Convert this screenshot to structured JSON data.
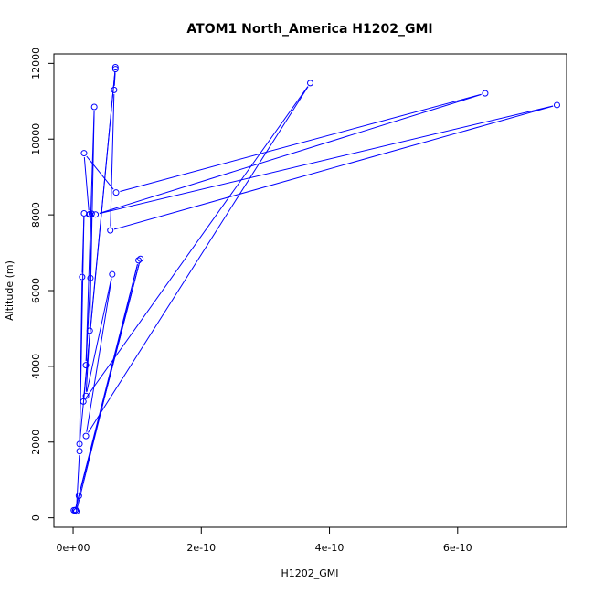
{
  "chart_data": {
    "type": "scatter",
    "title": "ATOM1 North_America H1202_GMI",
    "xlabel": "H1202_GMI",
    "ylabel": "Altitude (m)",
    "xlim": [
      -3e-11,
      7.7e-10
    ],
    "ylim": [
      -250,
      12250
    ],
    "x_ticks": [
      0,
      2e-10,
      4e-10,
      6e-10
    ],
    "x_tick_labels": [
      "0e+00",
      "2e-10",
      "4e-10",
      "6e-10"
    ],
    "y_ticks": [
      0,
      2000,
      4000,
      6000,
      8000,
      10000,
      12000
    ],
    "y_tick_labels": [
      "0",
      "2000",
      "4000",
      "6000",
      "8000",
      "10000",
      "12000"
    ],
    "grid": false,
    "series": [
      {
        "color": "#0000ff",
        "points": [
          {
            "x": 1e-12,
            "y": 200
          },
          {
            "x": 4e-12,
            "y": 210
          },
          {
            "x": 9e-12,
            "y": 580
          },
          {
            "x": 1.05e-10,
            "y": 6840
          },
          {
            "x": 3e-12,
            "y": 190
          },
          {
            "x": 1.02e-10,
            "y": 6800
          },
          {
            "x": 5e-12,
            "y": 170
          },
          {
            "x": 1e-11,
            "y": 1760
          },
          {
            "x": 1.7e-11,
            "y": 8040
          },
          {
            "x": 1.4e-11,
            "y": 6360
          },
          {
            "x": 1e-11,
            "y": 1950
          },
          {
            "x": 6.6e-11,
            "y": 11900
          },
          {
            "x": 1.6e-11,
            "y": 3070
          },
          {
            "x": 3.7e-10,
            "y": 11480
          },
          {
            "x": 2e-11,
            "y": 2160
          },
          {
            "x": 6.1e-11,
            "y": 6430
          },
          {
            "x": 2e-11,
            "y": 3220
          },
          {
            "x": 2.6e-11,
            "y": 4940
          },
          {
            "x": 3.3e-11,
            "y": 10850
          },
          {
            "x": 2e-11,
            "y": 4030
          },
          {
            "x": 2.7e-11,
            "y": 6330
          },
          {
            "x": 2.9e-11,
            "y": 8030
          },
          {
            "x": 2.6e-11,
            "y": 8020
          },
          {
            "x": 2.5e-11,
            "y": 8010
          },
          {
            "x": 1.7e-11,
            "y": 9630
          },
          {
            "x": 6.7e-11,
            "y": 8590
          },
          {
            "x": 6.43e-10,
            "y": 11210
          },
          {
            "x": 3.5e-11,
            "y": 8010
          },
          {
            "x": 7.55e-10,
            "y": 10900
          },
          {
            "x": 5.8e-11,
            "y": 7590
          },
          {
            "x": 6.4e-11,
            "y": 11300
          },
          {
            "x": 6.6e-11,
            "y": 11850
          }
        ]
      }
    ]
  }
}
